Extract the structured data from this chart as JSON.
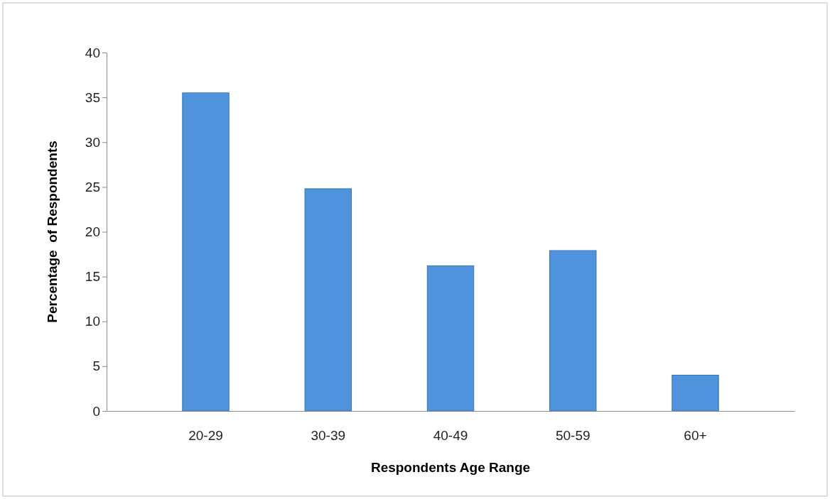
{
  "chart_data": {
    "type": "bar",
    "xlabel": "Respondents Age Range",
    "ylabel": "Percentage  of Respondents",
    "categories": [
      "20-29",
      "30-39",
      "40-49",
      "50-59",
      "60+"
    ],
    "values": [
      35.5,
      24.8,
      16.2,
      17.9,
      4.0
    ],
    "color": "#4f93dc",
    "ylim": [
      0,
      40
    ],
    "yticks": [
      0,
      5,
      10,
      15,
      20,
      25,
      30,
      35,
      40
    ],
    "grid": false
  }
}
